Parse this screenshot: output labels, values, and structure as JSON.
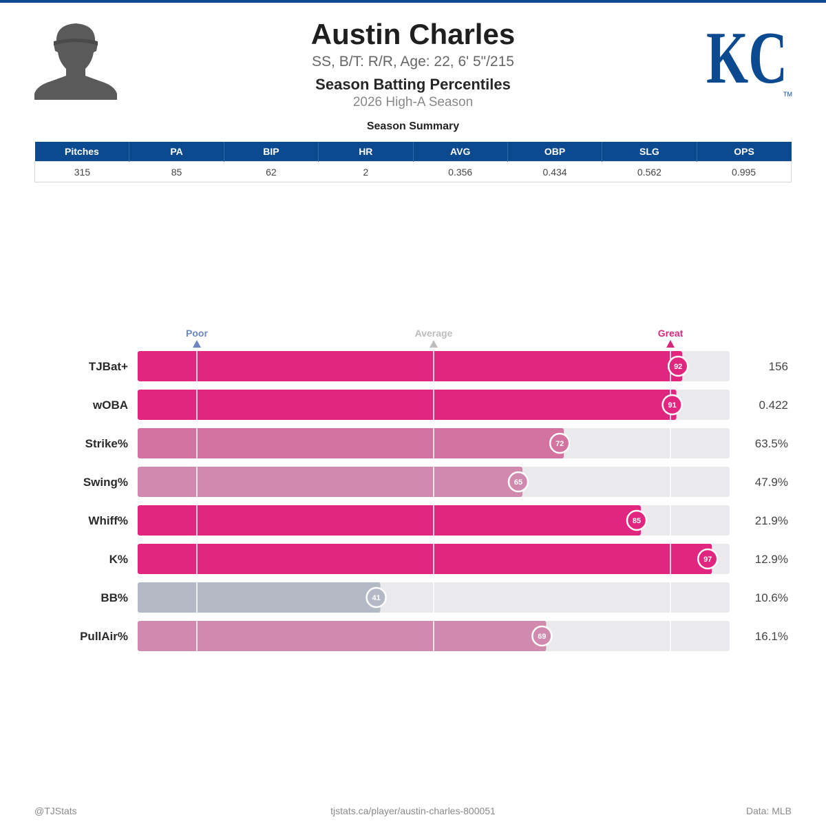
{
  "header": {
    "name": "Austin Charles",
    "bio": "SS, B/T: R/R, Age: 22, 6' 5\"/215",
    "title": "Season Batting Percentiles",
    "subtitle": "2026 High-A Season",
    "team_logo_text": "KC",
    "team_logo_mark": "TM"
  },
  "summary": {
    "title": "Season Summary",
    "columns": [
      "Pitches",
      "PA",
      "BIP",
      "HR",
      "AVG",
      "OBP",
      "SLG",
      "OPS"
    ],
    "values": [
      "315",
      "85",
      "62",
      "2",
      "0.356",
      "0.434",
      "0.562",
      "0.995"
    ]
  },
  "chart_data": {
    "type": "bar",
    "orientation": "horizontal",
    "categories": [
      "TJBat+",
      "wOBA",
      "Strike%",
      "Swing%",
      "Whiff%",
      "K%",
      "BB%",
      "PullAir%"
    ],
    "values": [
      92,
      91,
      72,
      65,
      85,
      97,
      41,
      69
    ],
    "stat_values": [
      "156",
      "0.422",
      "63.5%",
      "47.9%",
      "21.9%",
      "12.9%",
      "10.6%",
      "16.1%"
    ],
    "xlim": [
      0,
      100
    ],
    "markers": [
      {
        "label": "Poor",
        "value": 10,
        "color": "#6b86c0"
      },
      {
        "label": "Average",
        "value": 50,
        "color": "#bdbdbd"
      },
      {
        "label": "Great",
        "value": 90,
        "color": "#d6287a"
      }
    ],
    "colors": {
      "track": "#e9e9ee",
      "high": "#e0267f",
      "low": "#b3bac6",
      "mid": "#d07aa0"
    }
  },
  "footer": {
    "left": "@TJStats",
    "center": "tjstats.ca/player/austin-charles-800051",
    "right": "Data: MLB"
  }
}
